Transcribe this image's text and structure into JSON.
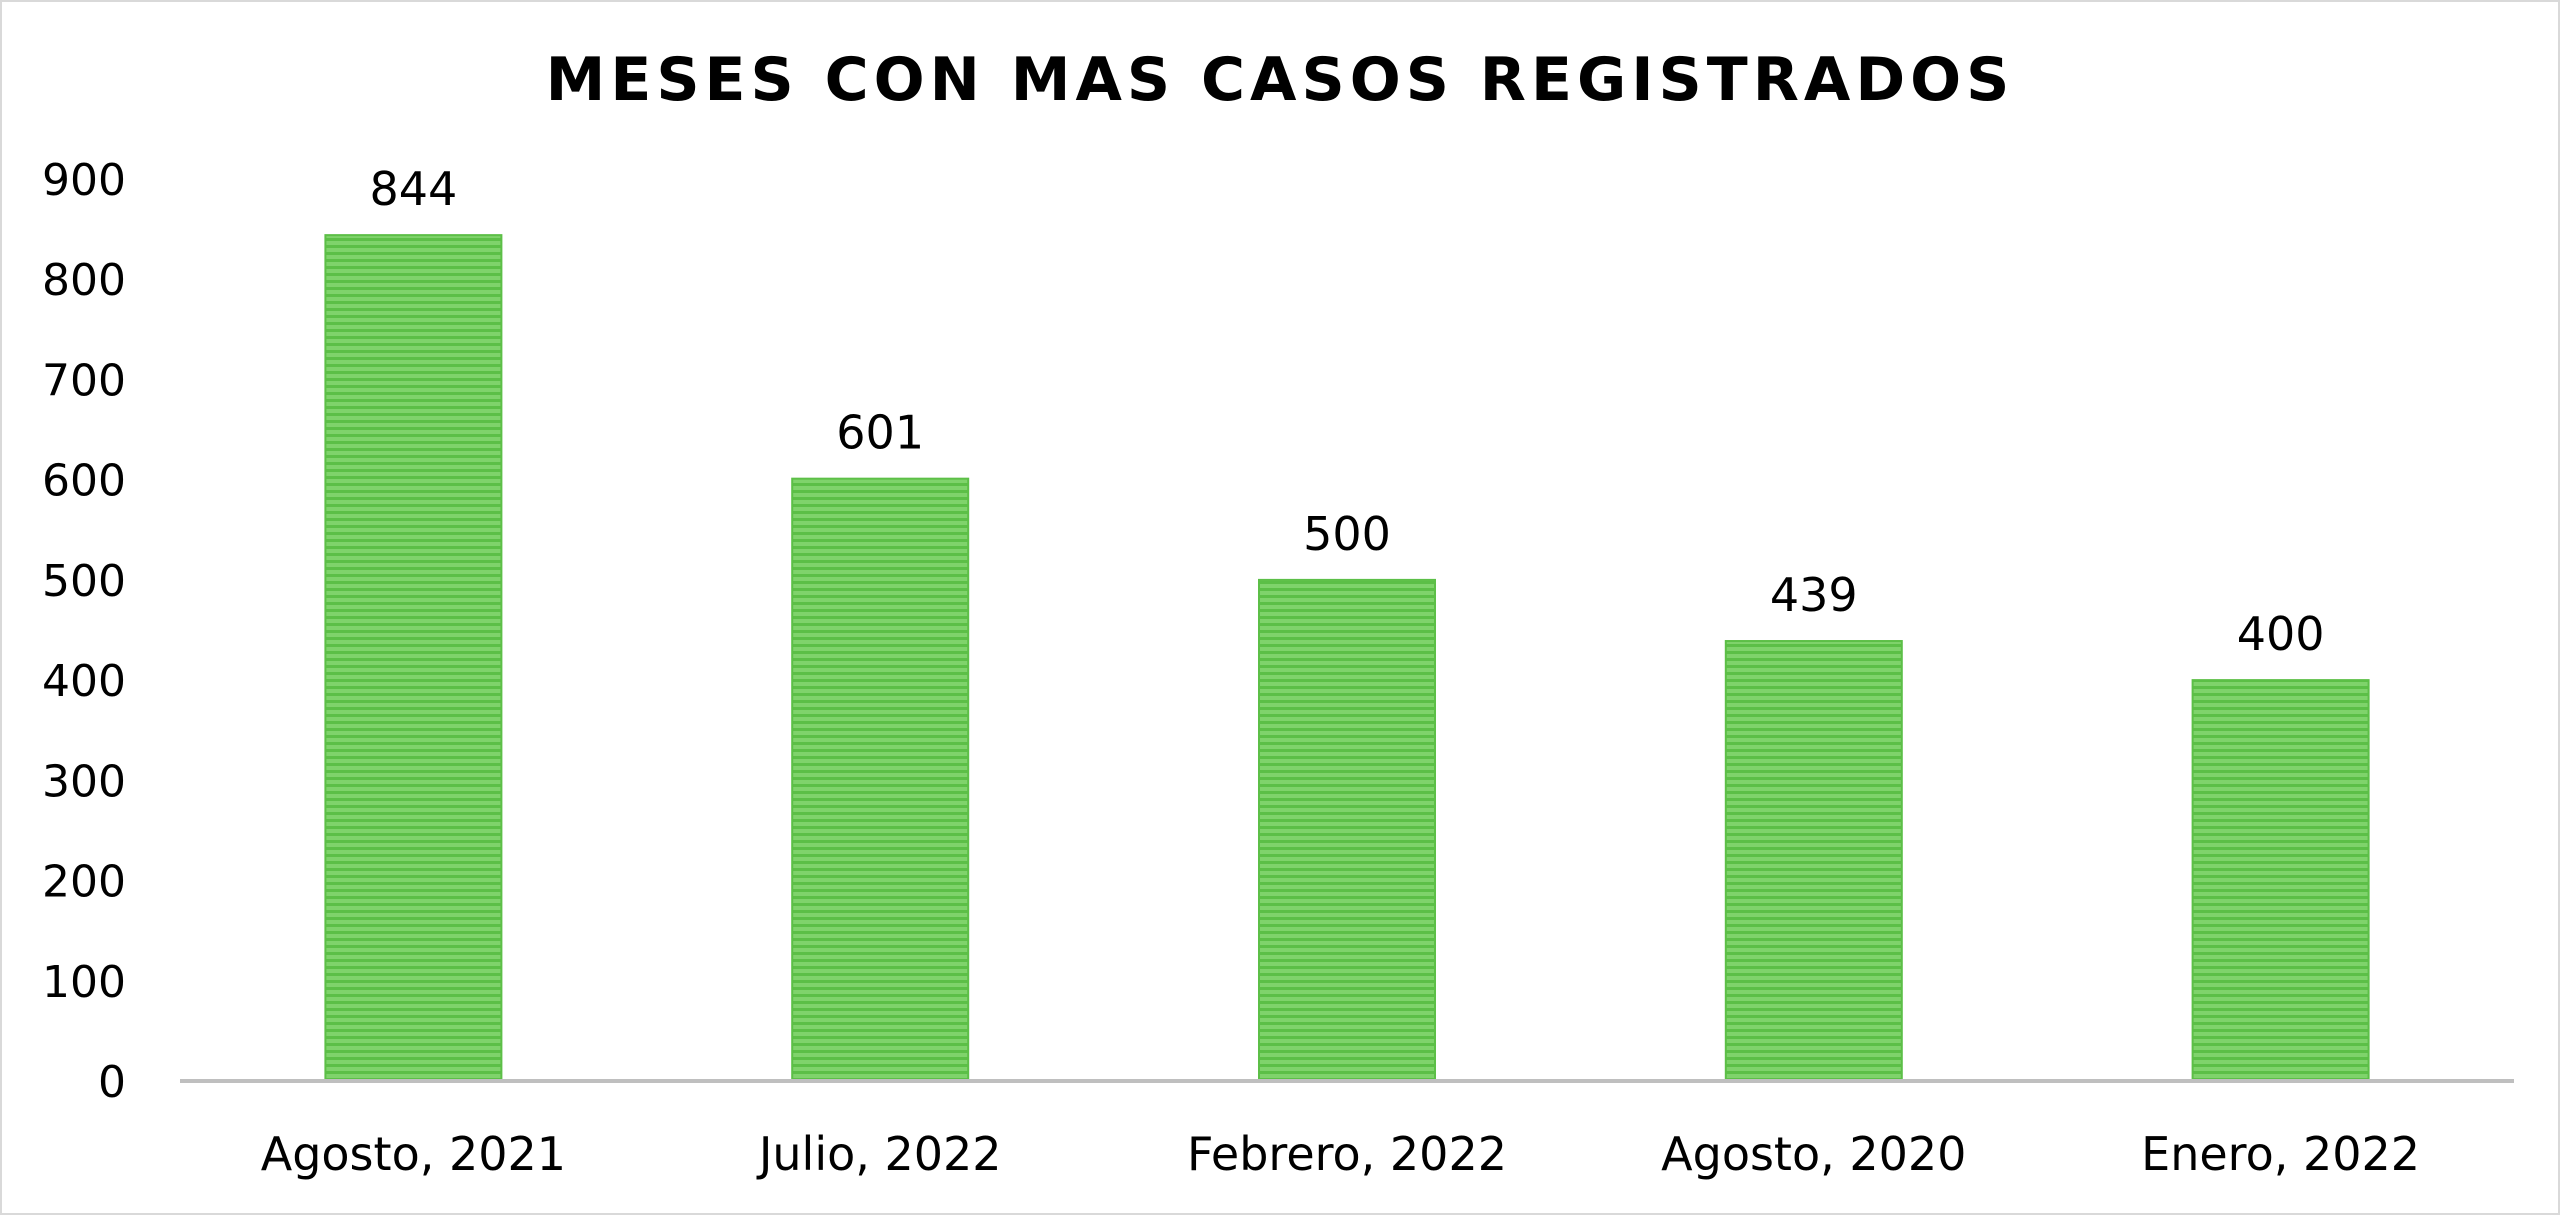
{
  "chart_data": {
    "type": "bar",
    "title": "MESES CON MAS CASOS REGISTRADOS",
    "categories": [
      "Agosto, 2021",
      "Julio, 2022",
      "Febrero, 2022",
      "Agosto, 2020",
      "Enero, 2022"
    ],
    "values": [
      844,
      601,
      500,
      439,
      400
    ],
    "data_labels": [
      "844",
      "601",
      "500",
      "439",
      "400"
    ],
    "ylim": [
      0,
      900
    ],
    "y_ticks": [
      0,
      100,
      200,
      300,
      400,
      500,
      600,
      700,
      800,
      900
    ],
    "grid": false,
    "legend": "none",
    "bar_color": "#7fd36b",
    "bar_stripe_color": "#5cbf47",
    "axis_color": "#bfbfbf"
  }
}
